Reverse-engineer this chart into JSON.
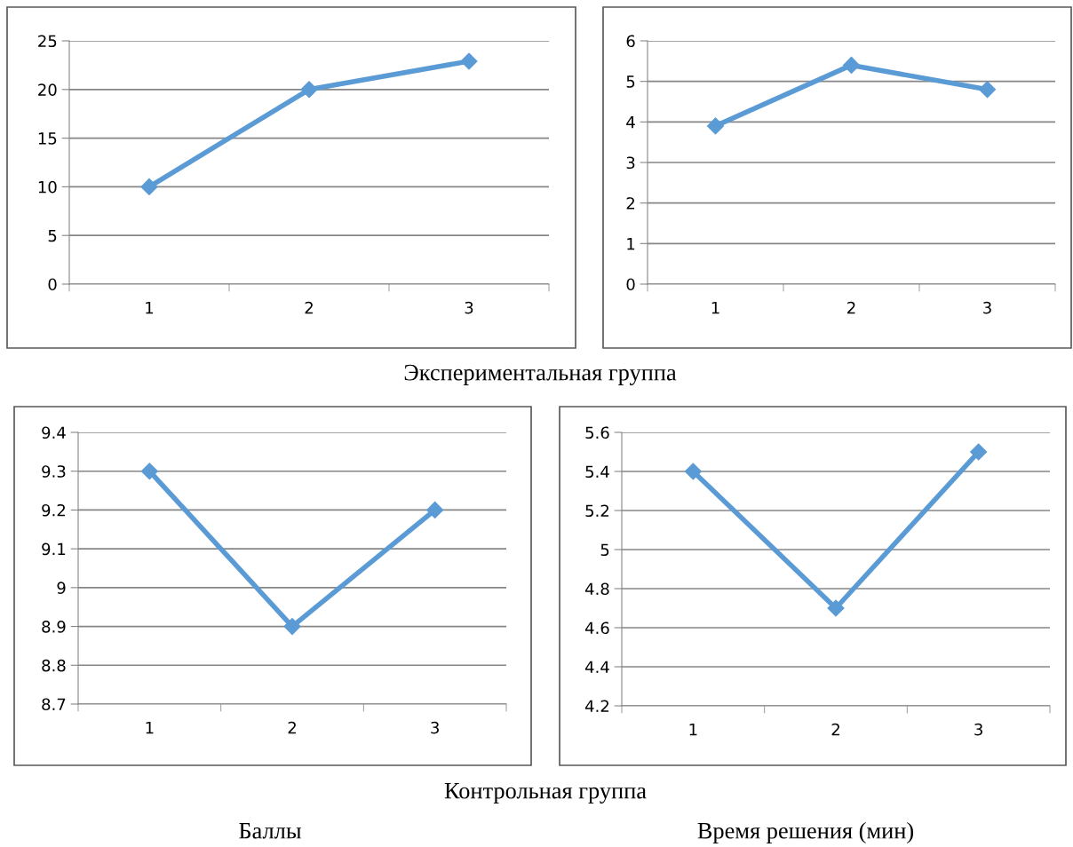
{
  "chart_data": [
    {
      "type": "line",
      "categories": [
        "1",
        "2",
        "3"
      ],
      "series": [
        {
          "color": "#5b9bd5",
          "values": [
            10,
            20,
            22.9
          ]
        }
      ],
      "ylim": [
        0,
        25
      ],
      "yticks": [
        0,
        5,
        10,
        15,
        20,
        25
      ],
      "grid": "y",
      "marker": "diamond",
      "line_style": "solid",
      "annotations": [
        "Экспериментальная группа"
      ]
    },
    {
      "type": "line",
      "categories": [
        "1",
        "2",
        "3"
      ],
      "series": [
        {
          "color": "#5b9bd5",
          "values": [
            3.9,
            5.4,
            4.8
          ]
        }
      ],
      "ylim": [
        0,
        6
      ],
      "yticks": [
        0,
        1,
        2,
        3,
        4,
        5,
        6
      ],
      "grid": "y",
      "marker": "diamond",
      "line_style": "solid"
    },
    {
      "type": "line",
      "categories": [
        "1",
        "2",
        "3"
      ],
      "series": [
        {
          "color": "#5b9bd5",
          "values": [
            9.3,
            8.9,
            9.2
          ]
        }
      ],
      "ylim": [
        8.7,
        9.4
      ],
      "yticks": [
        8.7,
        8.8,
        8.9,
        9,
        9.1,
        9.2,
        9.3,
        9.4
      ],
      "grid": "y",
      "marker": "diamond",
      "line_style": "solid",
      "annotations": [
        "Контрольная группа",
        "Баллы"
      ]
    },
    {
      "type": "line",
      "categories": [
        "1",
        "2",
        "3"
      ],
      "series": [
        {
          "color": "#5b9bd5",
          "values": [
            5.4,
            4.7,
            5.5
          ]
        }
      ],
      "ylim": [
        4.2,
        5.6
      ],
      "yticks": [
        4.2,
        4.4,
        4.6,
        4.8,
        5,
        5.2,
        5.4,
        5.6
      ],
      "grid": "y",
      "marker": "diamond",
      "line_style": "solid",
      "annotations": [
        "Время решения (мин)"
      ]
    }
  ]
}
